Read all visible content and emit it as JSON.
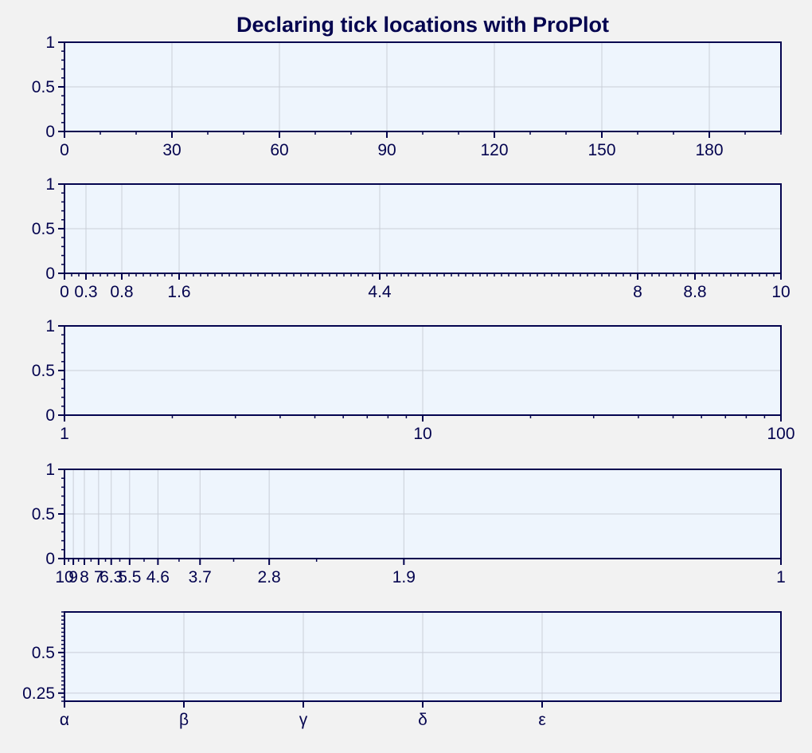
{
  "colors": {
    "background": "#f2f2f2",
    "axes_face": "#eef5fd",
    "spine": "#04044f",
    "grid": "#c9ced8",
    "text": "#04044f"
  },
  "title": "Declaring tick locations with ProPlot",
  "chart_data": [
    {
      "type": "line",
      "title": "",
      "xscale": "linear",
      "xlim": [
        0,
        200
      ],
      "ylim": [
        0,
        1
      ],
      "xticks": [
        0,
        30,
        60,
        90,
        120,
        150,
        180
      ],
      "xtick_labels": [
        "0",
        "30",
        "60",
        "90",
        "120",
        "150",
        "180"
      ],
      "x_minor_step": 10,
      "yticks": [
        0,
        0.5,
        1
      ],
      "ytick_labels": [
        "0",
        "0.5",
        "1"
      ],
      "y_minor_step": 0.1,
      "grid": true,
      "series": []
    },
    {
      "type": "line",
      "title": "",
      "xscale": "linear",
      "xlim": [
        0,
        10
      ],
      "ylim": [
        0,
        1
      ],
      "xticks": [
        0,
        0.3,
        0.8,
        1.6,
        4.4,
        8,
        8.8,
        10
      ],
      "xtick_labels": [
        "0",
        "0.3",
        "0.8",
        "1.6",
        "4.4",
        "8",
        "8.8",
        "10"
      ],
      "x_minor_step": 0.1,
      "yticks": [
        0,
        0.5,
        1
      ],
      "ytick_labels": [
        "0",
        "0.5",
        "1"
      ],
      "y_minor_step": 0.1,
      "grid": true,
      "series": []
    },
    {
      "type": "line",
      "title": "",
      "xscale": "log",
      "xlim": [
        1,
        100
      ],
      "ylim": [
        0,
        1
      ],
      "xticks": [
        1,
        10,
        100
      ],
      "xtick_labels": [
        "1",
        "10",
        "100"
      ],
      "x_minor": [
        2,
        3,
        4,
        5,
        6,
        7,
        8,
        9,
        20,
        30,
        40,
        50,
        60,
        70,
        80,
        90
      ],
      "yticks": [
        0,
        0.5,
        1
      ],
      "ytick_labels": [
        "0",
        "0.5",
        "1"
      ],
      "y_minor_step": 0.1,
      "grid": true,
      "series": []
    },
    {
      "type": "line",
      "title": "",
      "xscale": "inverse",
      "xlim": [
        0.1,
        1
      ],
      "ylim": [
        0,
        1
      ],
      "xticks": [
        10,
        9,
        8,
        7,
        6.3,
        5.5,
        4.6,
        3.7,
        2.8,
        1.9,
        1
      ],
      "xtick_labels": [
        "10",
        "9",
        "8",
        "7",
        "6.3",
        "5.5",
        "4.6",
        "3.7",
        "2.8",
        "1.9",
        "1"
      ],
      "x_minor": [
        9.5,
        8.5,
        7.5,
        6.6,
        5.9,
        5.0,
        4.1,
        3.2,
        2.4
      ],
      "yticks": [
        0,
        0.5,
        1
      ],
      "ytick_labels": [
        "0",
        "0.5",
        "1"
      ],
      "y_minor_step": 0.1,
      "grid": true,
      "series": []
    },
    {
      "type": "line",
      "title": "",
      "xscale": "linear",
      "xlim": [
        0,
        6
      ],
      "ylim": [
        0.2,
        0.75
      ],
      "xticks": [
        0,
        1,
        2,
        3,
        4
      ],
      "xtick_labels": [
        "α",
        "β",
        "γ",
        "δ",
        "ε"
      ],
      "yticks": [
        0.25,
        0.5
      ],
      "ytick_labels": [
        "0.25",
        "0.5"
      ],
      "y_minor_step": 0.025,
      "grid": true,
      "series": []
    }
  ]
}
